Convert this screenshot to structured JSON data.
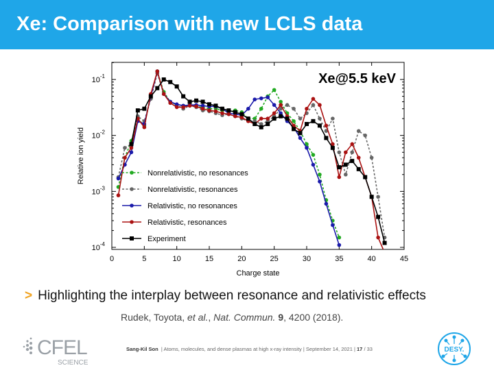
{
  "slide": {
    "title": "Xe: Comparison with new LCLS data",
    "bullet": "Highlighting the interplay between resonance and relativistic effects",
    "bullet_marker": ">",
    "citation": {
      "authors": "Rudek, Toyota, ",
      "etal": "et al.",
      "journal": "Nat. Commun.",
      "volume": "9",
      "rest": ", 4200 (2018)."
    },
    "footer": {
      "author": "Sang-Kil Son",
      "text": "| Atoms, molecules, and dense plasmas at high x-ray intensity | September 14, 2021 |",
      "page": "17",
      "total": "/ 33"
    },
    "logos": {
      "cfel": "CFEL",
      "cfel_sub": "SCIENCE",
      "desy": "DESY."
    },
    "colors": {
      "header": "#1fa6e8",
      "accent": "#f0a21e"
    }
  },
  "chart_data": {
    "type": "line",
    "annotation": "Xe@5.5 keV",
    "xlabel": "Charge state",
    "ylabel": "Relative ion yield",
    "xlim": [
      0,
      45
    ],
    "ylim": [
      0.0001,
      0.2
    ],
    "yscale": "log",
    "xticks": [
      0,
      5,
      10,
      15,
      20,
      25,
      30,
      35,
      40,
      45
    ],
    "yticks": [
      {
        "value": 0.1,
        "base": "10",
        "exp": "-1"
      },
      {
        "value": 0.01,
        "base": "10",
        "exp": "-2"
      },
      {
        "value": 0.001,
        "base": "10",
        "exp": "-3"
      },
      {
        "value": 0.0001,
        "base": "10",
        "exp": "-4"
      }
    ],
    "legend_position": "lower-left",
    "series": [
      {
        "name": "Nonrelativistic, no resonances",
        "color": "#22aa22",
        "dash": true,
        "marker": "circle",
        "x": [
          1,
          2,
          3,
          4,
          5,
          6,
          7,
          8,
          9,
          10,
          11,
          12,
          13,
          14,
          15,
          16,
          17,
          18,
          19,
          20,
          21,
          22,
          23,
          24,
          25,
          26,
          27,
          28,
          29,
          30,
          31,
          32,
          33,
          34,
          35
        ],
        "y": [
          0.0012,
          0.004,
          0.008,
          0.02,
          0.015,
          0.05,
          0.14,
          0.06,
          0.04,
          0.035,
          0.034,
          0.035,
          0.033,
          0.032,
          0.03,
          0.03,
          0.028,
          0.027,
          0.028,
          0.026,
          0.02,
          0.02,
          0.03,
          0.05,
          0.065,
          0.04,
          0.025,
          0.018,
          0.012,
          0.007,
          0.0045,
          0.002,
          0.0007,
          0.0003,
          0.00015
        ]
      },
      {
        "name": "Nonrelativistic, resonances",
        "color": "#666666",
        "dash": true,
        "marker": "circle",
        "x": [
          1,
          2,
          3,
          4,
          5,
          6,
          7,
          8,
          9,
          10,
          11,
          12,
          13,
          14,
          15,
          16,
          17,
          18,
          19,
          20,
          21,
          22,
          23,
          24,
          25,
          26,
          27,
          28,
          29,
          30,
          31,
          32,
          33,
          34,
          35,
          36,
          37,
          38,
          39,
          40,
          41,
          42
        ],
        "y": [
          0.0018,
          0.006,
          0.007,
          0.022,
          0.018,
          0.045,
          0.13,
          0.055,
          0.04,
          0.035,
          0.03,
          0.034,
          0.032,
          0.028,
          0.027,
          0.025,
          0.023,
          0.024,
          0.022,
          0.02,
          0.018,
          0.018,
          0.016,
          0.018,
          0.022,
          0.03,
          0.035,
          0.03,
          0.02,
          0.025,
          0.035,
          0.02,
          0.012,
          0.02,
          0.005,
          0.002,
          0.005,
          0.012,
          0.01,
          0.004,
          0.0008,
          0.00015
        ]
      },
      {
        "name": "Relativistic, no resonances",
        "color": "#1a1aaa",
        "dash": false,
        "marker": "circle",
        "x": [
          1,
          2,
          3,
          4,
          5,
          6,
          7,
          8,
          9,
          10,
          11,
          12,
          13,
          14,
          15,
          16,
          17,
          18,
          19,
          20,
          21,
          22,
          23,
          24,
          25,
          26,
          27,
          28,
          29,
          30,
          31,
          32,
          33,
          34,
          35
        ],
        "y": [
          0.0017,
          0.003,
          0.005,
          0.018,
          0.016,
          0.05,
          0.14,
          0.055,
          0.04,
          0.036,
          0.034,
          0.035,
          0.035,
          0.034,
          0.033,
          0.033,
          0.03,
          0.025,
          0.024,
          0.023,
          0.03,
          0.044,
          0.046,
          0.048,
          0.035,
          0.025,
          0.018,
          0.014,
          0.009,
          0.006,
          0.003,
          0.0015,
          0.0006,
          0.00025,
          0.00011
        ]
      },
      {
        "name": "Relativistic, resonances",
        "color": "#aa1111",
        "dash": false,
        "marker": "circle",
        "x": [
          1,
          2,
          3,
          4,
          5,
          6,
          7,
          8,
          9,
          10,
          11,
          12,
          13,
          14,
          15,
          16,
          17,
          18,
          19,
          20,
          21,
          22,
          23,
          24,
          25,
          26,
          27,
          28,
          29,
          30,
          31,
          32,
          33,
          34,
          35,
          36,
          37,
          38,
          39,
          40,
          41,
          42
        ],
        "y": [
          0.00085,
          0.004,
          0.006,
          0.02,
          0.014,
          0.055,
          0.14,
          0.055,
          0.038,
          0.032,
          0.032,
          0.034,
          0.033,
          0.03,
          0.028,
          0.027,
          0.025,
          0.024,
          0.022,
          0.021,
          0.018,
          0.016,
          0.02,
          0.02,
          0.025,
          0.035,
          0.022,
          0.015,
          0.012,
          0.03,
          0.045,
          0.035,
          0.015,
          0.007,
          0.0018,
          0.005,
          0.007,
          0.004,
          0.0018,
          0.0008,
          0.00015,
          8e-05
        ]
      },
      {
        "name": "Experiment",
        "color": "#000000",
        "dash": false,
        "marker": "square",
        "x": [
          3,
          4,
          5,
          6,
          7,
          8,
          9,
          10,
          11,
          12,
          13,
          14,
          15,
          16,
          17,
          18,
          19,
          20,
          21,
          22,
          23,
          24,
          25,
          26,
          27,
          28,
          29,
          30,
          31,
          32,
          33,
          34,
          35,
          36,
          37,
          38,
          39,
          40,
          41,
          42
        ],
        "y": [
          0.007,
          0.028,
          0.03,
          0.05,
          0.07,
          0.1,
          0.09,
          0.075,
          0.05,
          0.04,
          0.042,
          0.04,
          0.036,
          0.034,
          0.03,
          0.028,
          0.026,
          0.024,
          0.02,
          0.016,
          0.014,
          0.016,
          0.02,
          0.022,
          0.02,
          0.013,
          0.011,
          0.016,
          0.018,
          0.015,
          0.009,
          0.006,
          0.0027,
          0.003,
          0.0035,
          0.0025,
          0.0018,
          0.0008,
          0.00035,
          0.00012
        ]
      }
    ]
  }
}
